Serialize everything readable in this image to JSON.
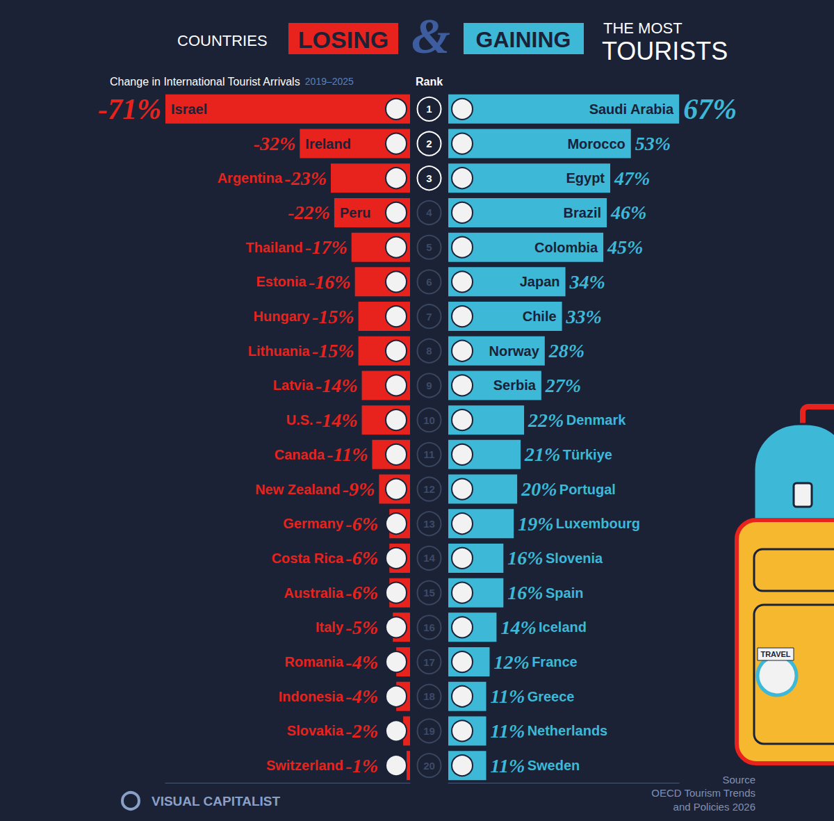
{
  "header": {
    "title": [
      "COUNTRIES",
      "LOSING",
      "&",
      "GAINING",
      "THE MOST",
      "TOURISTS"
    ],
    "subtitle": "Change in International Tourist Arrivals",
    "subtitle_period": "2019–2025",
    "rank_label": "Rank"
  },
  "ranks": [
    1,
    2,
    3,
    4,
    5,
    6,
    7,
    8,
    9,
    10,
    11,
    12,
    13,
    14,
    15,
    16,
    17,
    18,
    19,
    20
  ],
  "chart_data": [
    {
      "type": "bar",
      "orientation": "horizontal",
      "categories": [
        "Israel",
        "Ireland",
        "Argentina",
        "Peru",
        "Thailand",
        "Estonia",
        "Hungary",
        "Lithuania",
        "Latvia",
        "U.S.",
        "Canada",
        "New Zealand",
        "Germany",
        "Costa Rica",
        "Australia",
        "Italy",
        "Romania",
        "Indonesia",
        "Slovakia",
        "Switzerland"
      ],
      "values": [
        -71,
        -32,
        -23,
        -22,
        -17,
        -16,
        -15,
        -15,
        -14,
        -14,
        -11,
        -9,
        -6,
        -6,
        -6,
        -5,
        -4,
        -4,
        -2,
        -1
      ],
      "value_labels": [
        "-71%",
        "-32%",
        "-23%",
        "-22%",
        "-17%",
        "-16%",
        "-15%",
        "-15%",
        "-14%",
        "-14%",
        "-11%",
        "-9%",
        "-6%",
        "-6%",
        "-6%",
        "-5%",
        "-4%",
        "-4%",
        "-2%",
        "-1%"
      ],
      "color": "#e8221c",
      "xlim": [
        -71,
        0
      ],
      "tick_labels": false,
      "grid": false,
      "data_labels": true
    },
    {
      "type": "bar",
      "orientation": "horizontal",
      "categories": [
        "Saudi Arabia",
        "Morocco",
        "Egypt",
        "Brazil",
        "Colombia",
        "Japan",
        "Chile",
        "Norway",
        "Serbia",
        "Denmark",
        "Türkiye",
        "Portugal",
        "Luxembourg",
        "Slovenia",
        "Spain",
        "Iceland",
        "France",
        "Greece",
        "Netherlands",
        "Sweden"
      ],
      "values": [
        67,
        53,
        47,
        46,
        45,
        34,
        33,
        28,
        27,
        22,
        21,
        20,
        19,
        16,
        16,
        14,
        12,
        11,
        11,
        11
      ],
      "value_labels": [
        "67%",
        "53%",
        "47%",
        "46%",
        "45%",
        "34%",
        "33%",
        "28%",
        "27%",
        "22%",
        "21%",
        "20%",
        "19%",
        "16%",
        "16%",
        "14%",
        "12%",
        "11%",
        "11%",
        "11%"
      ],
      "color": "#3db8d6",
      "xlim": [
        0,
        67
      ],
      "tick_labels": false,
      "grid": false,
      "data_labels": true
    }
  ],
  "illustration": {
    "sticker": "TRAVEL"
  },
  "footer": {
    "brand": "VISUAL CAPITALIST",
    "source": [
      "Source",
      "OECD Tourism Trends",
      "and Policies 2026"
    ]
  }
}
